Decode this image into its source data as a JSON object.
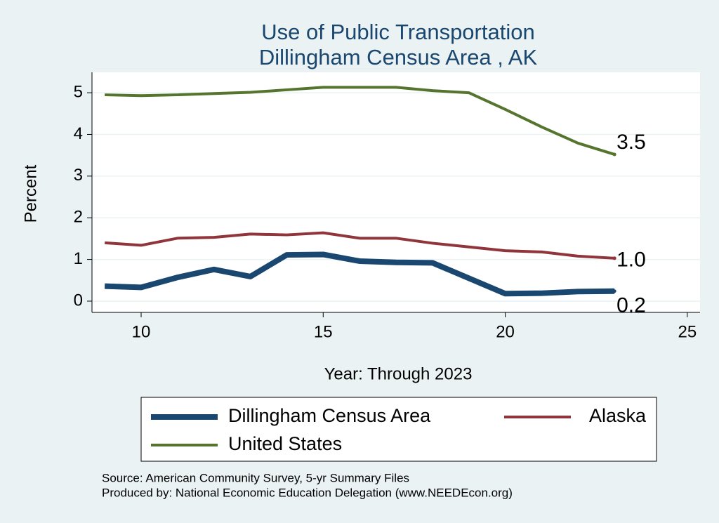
{
  "chart_data": {
    "type": "line",
    "title": "Use of Public Transportation",
    "subtitle": "Dillingham Census Area , AK",
    "x_label": "Year: Through 2023",
    "y_label": "Percent",
    "x": [
      9,
      10,
      11,
      12,
      13,
      14,
      15,
      16,
      17,
      18,
      19,
      20,
      21,
      22,
      23
    ],
    "series": [
      {
        "name": "Dillingham Census Area",
        "color": "#1a476f",
        "width": 8,
        "values": [
          0.36,
          0.33,
          0.57,
          0.76,
          0.59,
          1.11,
          1.12,
          0.96,
          0.93,
          0.92,
          0.55,
          0.18,
          0.19,
          0.23,
          0.24
        ],
        "end_label": "0.2"
      },
      {
        "name": "Alaska",
        "color": "#90353b",
        "width": 4,
        "values": [
          1.4,
          1.34,
          1.51,
          1.53,
          1.61,
          1.59,
          1.64,
          1.51,
          1.51,
          1.39,
          1.3,
          1.21,
          1.18,
          1.08,
          1.03
        ],
        "end_label": "1.0"
      },
      {
        "name": "United States",
        "color": "#55752f",
        "width": 4,
        "values": [
          4.95,
          4.93,
          4.95,
          4.98,
          5.01,
          5.07,
          5.13,
          5.13,
          5.13,
          5.05,
          5.0,
          4.6,
          4.18,
          3.79,
          3.52
        ],
        "end_label": "3.5"
      }
    ],
    "xlim": [
      8.65,
      25.35
    ],
    "xticks": [
      10,
      15,
      20,
      25
    ],
    "ylim": [
      -0.27,
      5.49
    ],
    "yticks": [
      0,
      1,
      2,
      3,
      4,
      5
    ],
    "grid": true,
    "notes": [
      "Source: American Community Survey, 5-yr Summary Files",
      "Produced by: National Economic Education Delegation (www.NEEDEcon.org)"
    ]
  }
}
